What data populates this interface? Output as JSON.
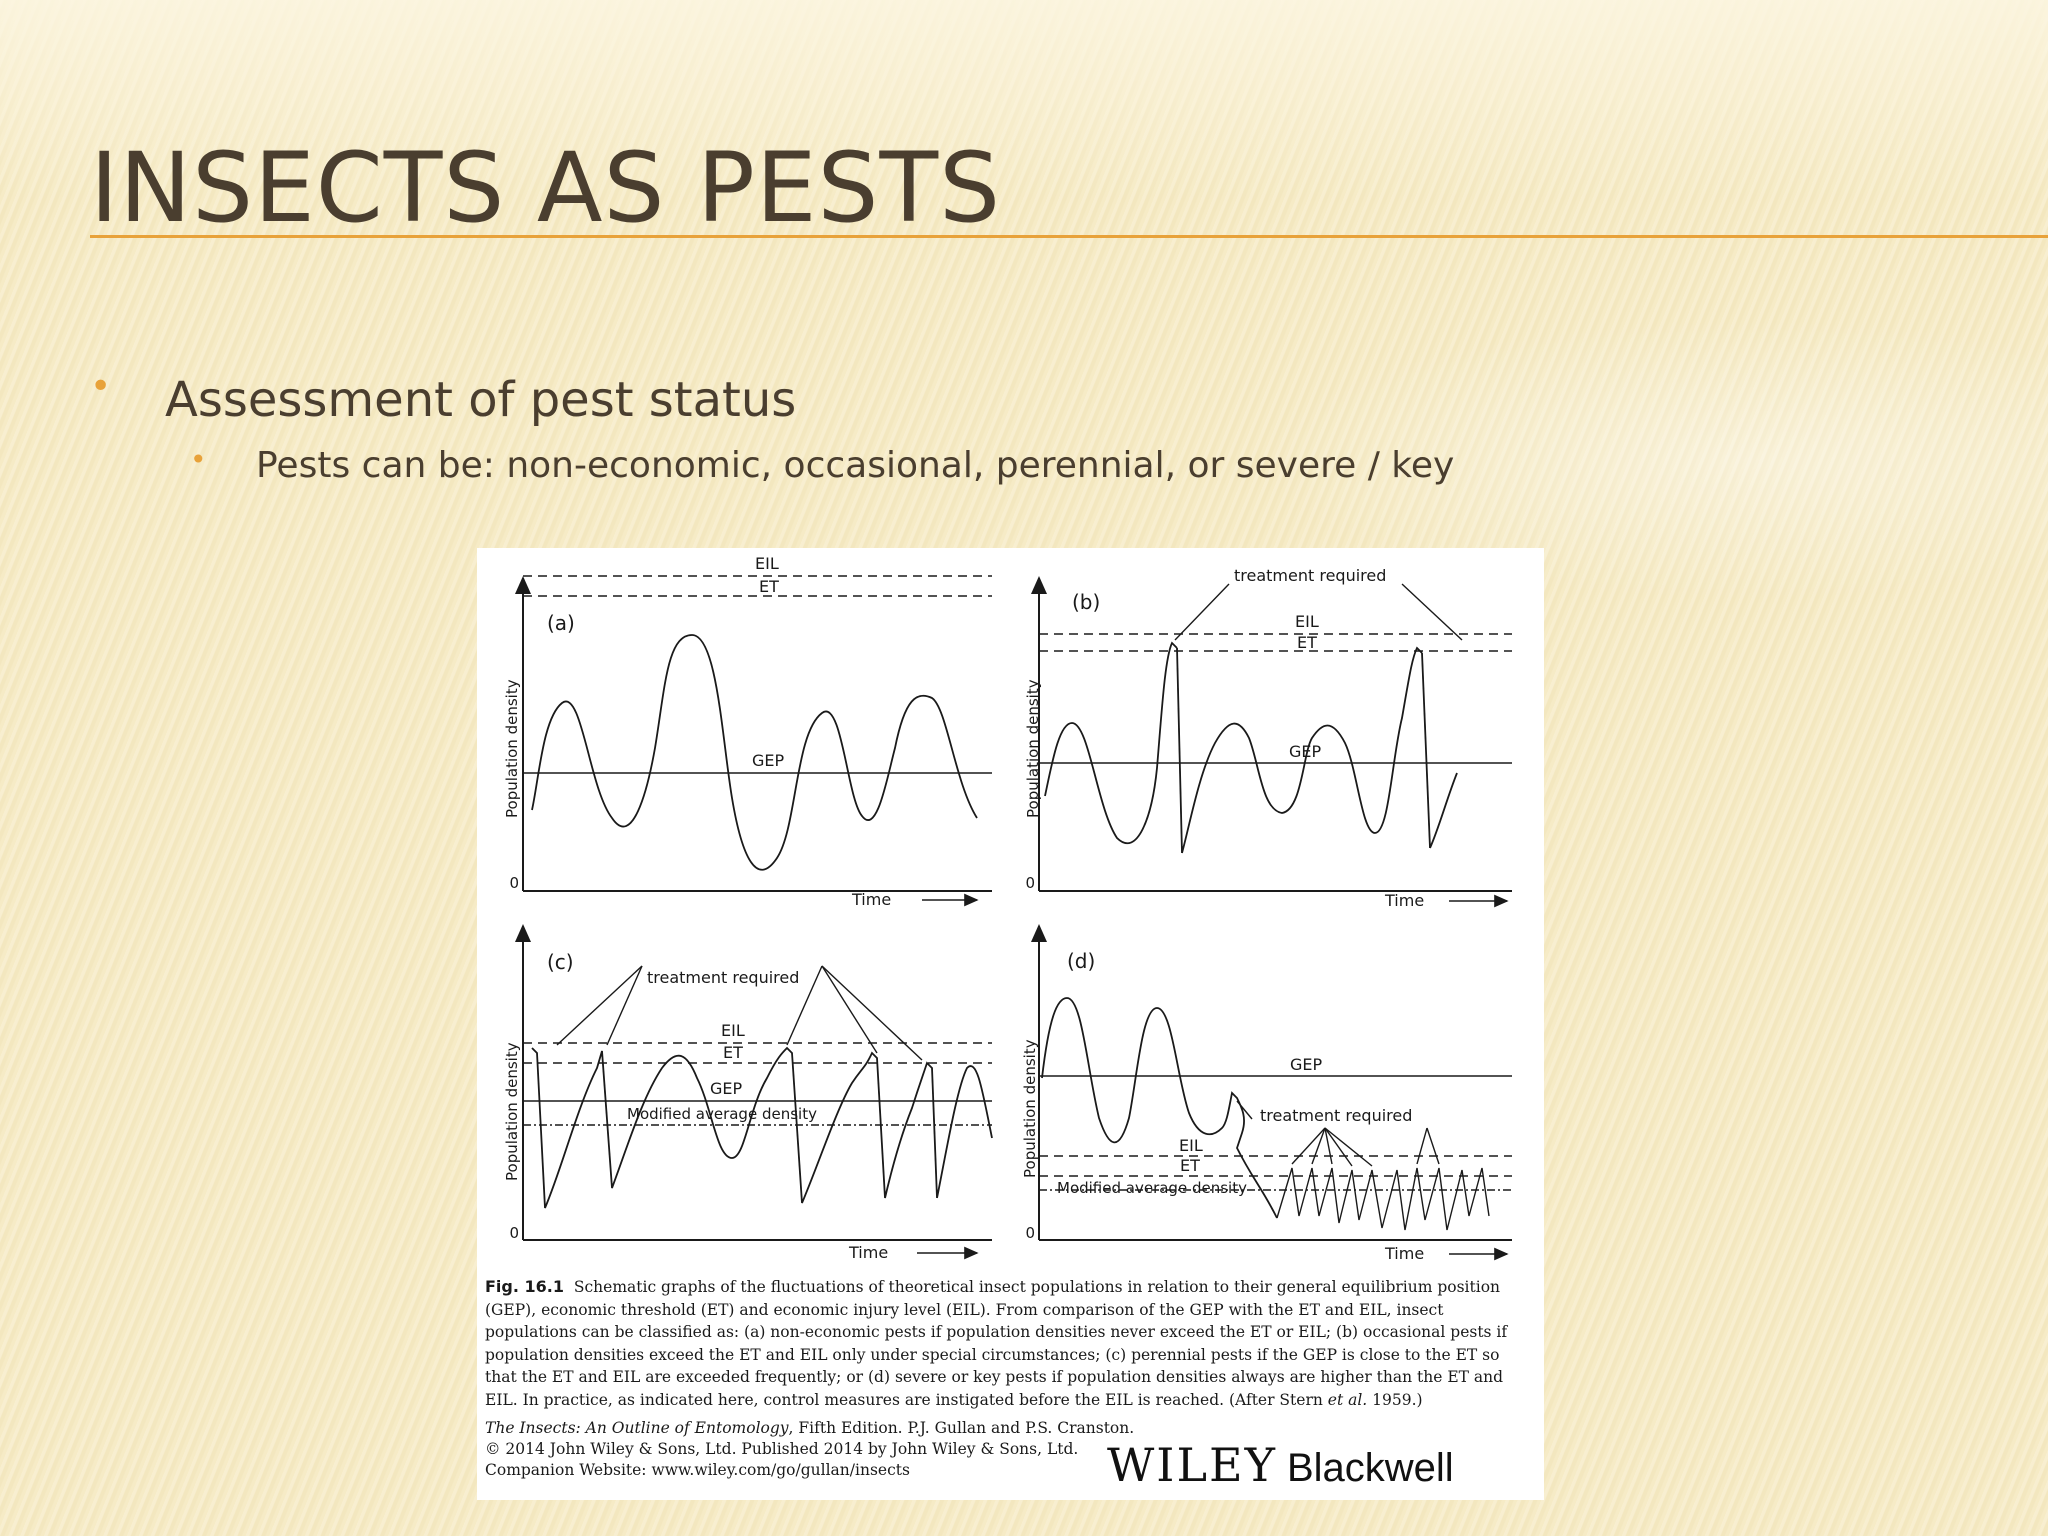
{
  "slide": {
    "title": "INSECTS AS PESTS",
    "bullet_level1": "Assessment of pest status",
    "bullet_level2": "Pests can be: non-economic, occasional, perennial, or severe / key",
    "bullet_glyph": "•"
  },
  "figure": {
    "panels": [
      {
        "id": "a",
        "label": "(a)",
        "ylabel": "Population density",
        "xlabel": "Time",
        "zero": "0",
        "lines": {
          "eil": "EIL",
          "et": "ET",
          "gep": "GEP"
        }
      },
      {
        "id": "b",
        "label": "(b)",
        "ylabel": "Population density",
        "xlabel": "Time",
        "zero": "0",
        "lines": {
          "eil": "EIL",
          "et": "ET",
          "gep": "GEP"
        },
        "annotation": "treatment required"
      },
      {
        "id": "c",
        "label": "(c)",
        "ylabel": "Population density",
        "xlabel": "Time",
        "zero": "0",
        "lines": {
          "eil": "EIL",
          "et": "ET",
          "gep": "GEP",
          "mad": "Modified average density"
        },
        "annotation": "treatment required"
      },
      {
        "id": "d",
        "label": "(d)",
        "ylabel": "Population density",
        "xlabel": "Time",
        "zero": "0",
        "lines": {
          "eil": "EIL",
          "et": "ET",
          "gep": "GEP",
          "mad": "Modified average density"
        },
        "annotation": "treatment required"
      }
    ],
    "caption": {
      "fig_label": "Fig. 16.1",
      "text_part1": "Schematic graphs of the fluctuations of theoretical insect populations in relation to their general equilibrium position (GEP), economic threshold (ET) and economic injury level (EIL). From comparison of the GEP with the ET and EIL, insect populations can be classified as: (a) non-economic pests if population densities never exceed the ET or EIL; (b) occasional pests if population densities exceed the ET and EIL only under special circumstances; (c) perennial pests if the GEP is close to the ET so that the ET and EIL are exceeded frequently; or (d) severe or key pests if population densities always are higher than the ET and EIL. In practice, as indicated here, control measures are instigated before the EIL is reached. (After Stern ",
      "et_al": "et al.",
      "text_part2": " 1959.)"
    },
    "credits": {
      "book_title": "The Insects: An Outline of Entomology",
      "book_rest": ", Fifth Edition. P.J. Gullan and P.S. Cranston.",
      "copyright": "© 2014 John Wiley & Sons, Ltd. Published 2014 by John Wiley & Sons, Ltd.",
      "website": "Companion Website: www.wiley.com/go/gullan/insects"
    },
    "publisher": {
      "wiley": "WILEY",
      "blackwell": "Blackwell"
    }
  }
}
